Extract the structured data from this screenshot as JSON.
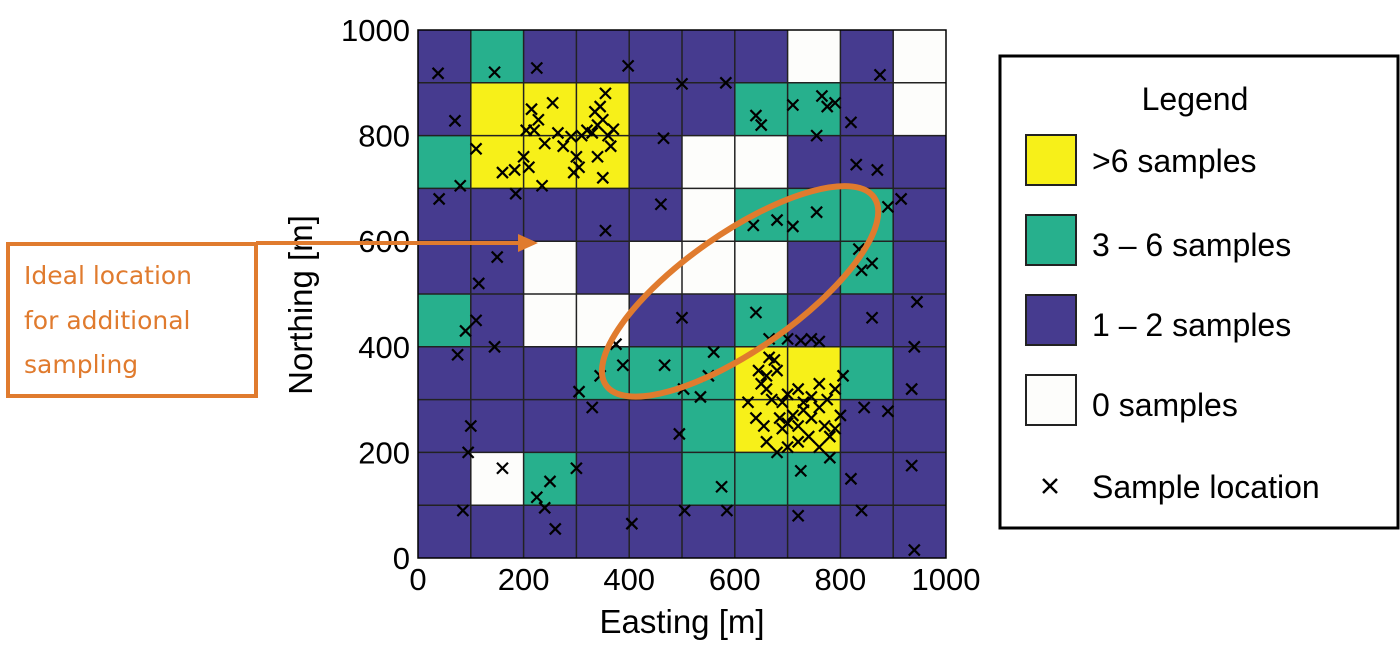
{
  "chart_data": {
    "type": "heatmap",
    "xlabel": "Easting [m]",
    "ylabel": "Northing [m]",
    "xlim": [
      0,
      1000
    ],
    "ylim": [
      0,
      1000
    ],
    "xticks": [
      "0",
      "200",
      "400",
      "600",
      "800",
      "1000"
    ],
    "yticks": [
      "0",
      "200",
      "400",
      "600",
      "800",
      "1000"
    ],
    "cell_size_m": 100,
    "grid": true,
    "colors": {
      "yellow": "#f7f019",
      "green": "#27b08d",
      "purple": "#463b8f",
      "white": "#fdfdfb",
      "annotation": "#e07b2e"
    },
    "cells_rows_top_to_bottom": [
      "PGPPPPPWPW",
      "PYYYPPGGPW",
      "GYYYPWWPPP",
      "PPPPPWGGGP",
      "PPWPWWWPGP",
      "GPWWPPGPPP",
      "PPPGGGYYGP",
      "PPPPPGYYPP",
      "PWGPPGGGPP",
      "PPPPPPPPPP"
    ],
    "legend": {
      "title": "Legend",
      "items": [
        {
          "label": ">6 samples",
          "color_key": "yellow"
        },
        {
          "label": "3 – 6 samples",
          "color_key": "green"
        },
        {
          "label": "1 – 2 samples",
          "color_key": "purple"
        },
        {
          "label": "0 samples",
          "color_key": "white"
        },
        {
          "label": "Sample location",
          "marker": "x"
        }
      ]
    },
    "annotation": {
      "lines": [
        "Ideal location",
        "for additional",
        "sampling"
      ],
      "ellipse_center": [
        610,
        505
      ],
      "ellipse_radii": [
        310,
        110
      ],
      "ellipse_angle_deg": 35
    },
    "sample_locations": [
      [
        38,
        918
      ],
      [
        145,
        920
      ],
      [
        225,
        928
      ],
      [
        398,
        932
      ],
      [
        500,
        898
      ],
      [
        583,
        900
      ],
      [
        875,
        915
      ],
      [
        70,
        828
      ],
      [
        110,
        775
      ],
      [
        160,
        730
      ],
      [
        183,
        735
      ],
      [
        200,
        760
      ],
      [
        205,
        810
      ],
      [
        215,
        850
      ],
      [
        220,
        810
      ],
      [
        228,
        830
      ],
      [
        240,
        785
      ],
      [
        255,
        862
      ],
      [
        265,
        805
      ],
      [
        275,
        780
      ],
      [
        290,
        798
      ],
      [
        300,
        760
      ],
      [
        310,
        800
      ],
      [
        320,
        810
      ],
      [
        330,
        805
      ],
      [
        340,
        820
      ],
      [
        350,
        830
      ],
      [
        360,
        800
      ],
      [
        370,
        812
      ],
      [
        345,
        855
      ],
      [
        355,
        880
      ],
      [
        335,
        845
      ],
      [
        210,
        740
      ],
      [
        235,
        705
      ],
      [
        295,
        730
      ],
      [
        305,
        740
      ],
      [
        340,
        760
      ],
      [
        365,
        780
      ],
      [
        185,
        690
      ],
      [
        350,
        720
      ],
      [
        465,
        795
      ],
      [
        640,
        838
      ],
      [
        710,
        858
      ],
      [
        765,
        875
      ],
      [
        790,
        862
      ],
      [
        775,
        855
      ],
      [
        820,
        825
      ],
      [
        755,
        800
      ],
      [
        830,
        745
      ],
      [
        870,
        735
      ],
      [
        650,
        820
      ],
      [
        40,
        680
      ],
      [
        80,
        705
      ],
      [
        460,
        670
      ],
      [
        355,
        620
      ],
      [
        635,
        630
      ],
      [
        680,
        640
      ],
      [
        710,
        628
      ],
      [
        755,
        655
      ],
      [
        890,
        665
      ],
      [
        915,
        680
      ],
      [
        150,
        570
      ],
      [
        835,
        585
      ],
      [
        840,
        545
      ],
      [
        860,
        558
      ],
      [
        860,
        455
      ],
      [
        110,
        450
      ],
      [
        90,
        430
      ],
      [
        115,
        520
      ],
      [
        500,
        455
      ],
      [
        640,
        465
      ],
      [
        75,
        385
      ],
      [
        145,
        400
      ],
      [
        305,
        315
      ],
      [
        345,
        345
      ],
      [
        388,
        365
      ],
      [
        467,
        365
      ],
      [
        503,
        320
      ],
      [
        535,
        305
      ],
      [
        550,
        345
      ],
      [
        375,
        405
      ],
      [
        330,
        285
      ],
      [
        560,
        390
      ],
      [
        945,
        485
      ],
      [
        940,
        400
      ],
      [
        645,
        355
      ],
      [
        660,
        345
      ],
      [
        665,
        380
      ],
      [
        675,
        375
      ],
      [
        680,
        355
      ],
      [
        650,
        330
      ],
      [
        660,
        320
      ],
      [
        670,
        300
      ],
      [
        690,
        295
      ],
      [
        700,
        310
      ],
      [
        720,
        320
      ],
      [
        730,
        295
      ],
      [
        745,
        305
      ],
      [
        760,
        330
      ],
      [
        775,
        300
      ],
      [
        790,
        320
      ],
      [
        805,
        345
      ],
      [
        665,
        415
      ],
      [
        700,
        415
      ],
      [
        725,
        412
      ],
      [
        745,
        415
      ],
      [
        760,
        410
      ],
      [
        685,
        265
      ],
      [
        690,
        245
      ],
      [
        700,
        255
      ],
      [
        710,
        270
      ],
      [
        720,
        250
      ],
      [
        730,
        280
      ],
      [
        745,
        265
      ],
      [
        760,
        285
      ],
      [
        770,
        250
      ],
      [
        780,
        230
      ],
      [
        790,
        245
      ],
      [
        800,
        270
      ],
      [
        760,
        210
      ],
      [
        740,
        230
      ],
      [
        720,
        220
      ],
      [
        700,
        210
      ],
      [
        680,
        200
      ],
      [
        655,
        250
      ],
      [
        640,
        265
      ],
      [
        625,
        295
      ],
      [
        660,
        220
      ],
      [
        845,
        285
      ],
      [
        890,
        278
      ],
      [
        935,
        320
      ],
      [
        100,
        250
      ],
      [
        95,
        200
      ],
      [
        250,
        145
      ],
      [
        300,
        170
      ],
      [
        495,
        235
      ],
      [
        575,
        135
      ],
      [
        725,
        165
      ],
      [
        820,
        150
      ],
      [
        840,
        90
      ],
      [
        935,
        175
      ],
      [
        225,
        115
      ],
      [
        160,
        170
      ],
      [
        85,
        90
      ],
      [
        240,
        95
      ],
      [
        260,
        55
      ],
      [
        405,
        65
      ],
      [
        505,
        90
      ],
      [
        585,
        90
      ],
      [
        720,
        80
      ],
      [
        940,
        15
      ],
      [
        780,
        190
      ]
    ]
  }
}
